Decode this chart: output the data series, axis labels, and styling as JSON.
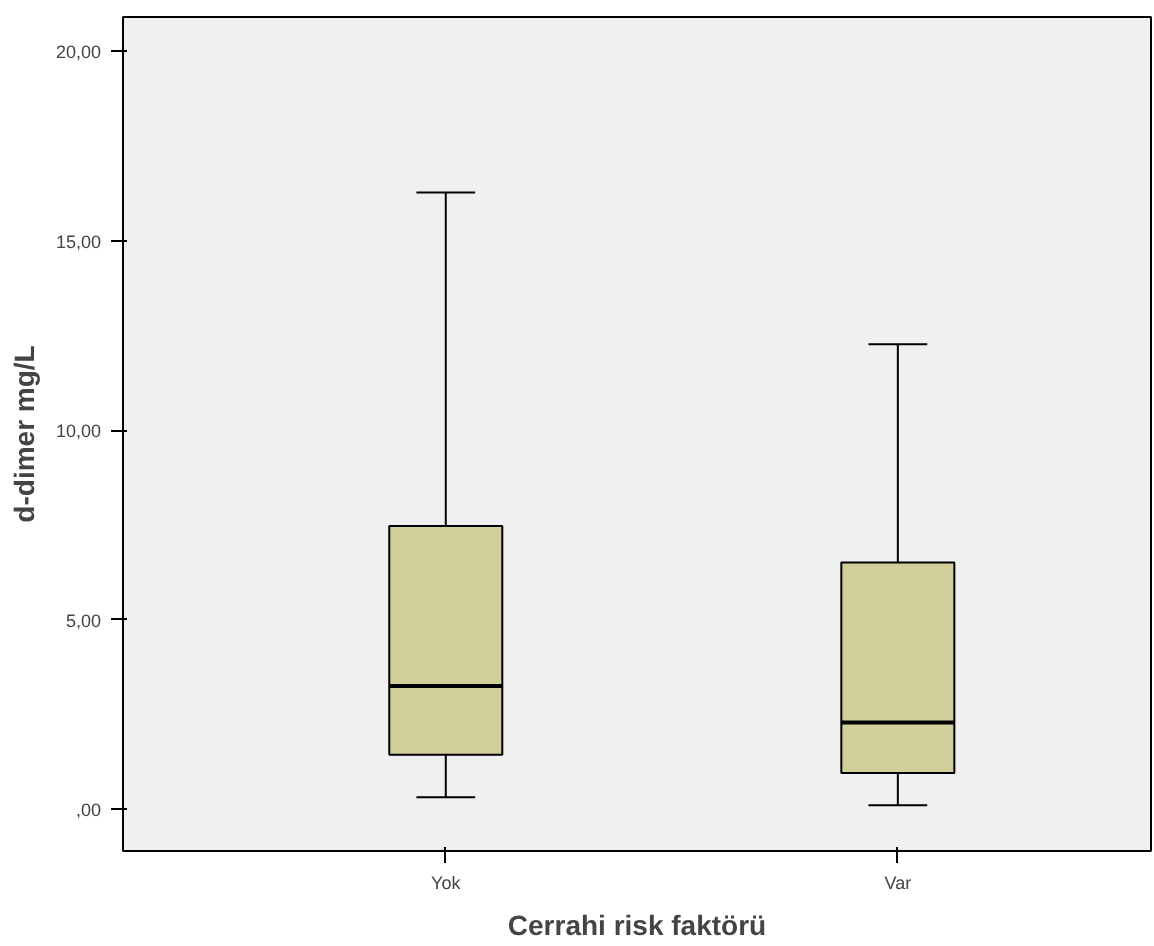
{
  "chart_data": {
    "type": "box",
    "xlabel": "Cerrahi risk faktörü",
    "ylabel": "d-dimer mg/L",
    "categories": [
      "Yok",
      "Var"
    ],
    "boxes": [
      {
        "low": 0.32,
        "q1": 1.44,
        "median": 3.25,
        "q3": 7.47,
        "high": 16.27
      },
      {
        "low": 0.11,
        "q1": 0.96,
        "median": 2.29,
        "q3": 6.51,
        "high": 12.27
      }
    ],
    "color": "#d3cf9a",
    "ylim": [
      -1.1,
      20.9
    ],
    "yticks": [
      {
        "value": 0,
        "label": ",00"
      },
      {
        "value": 5,
        "label": "5,00"
      },
      {
        "value": 10,
        "label": "10,00"
      },
      {
        "value": 15,
        "label": "15,00"
      },
      {
        "value": 20,
        "label": "20,00"
      }
    ],
    "grid": false
  }
}
